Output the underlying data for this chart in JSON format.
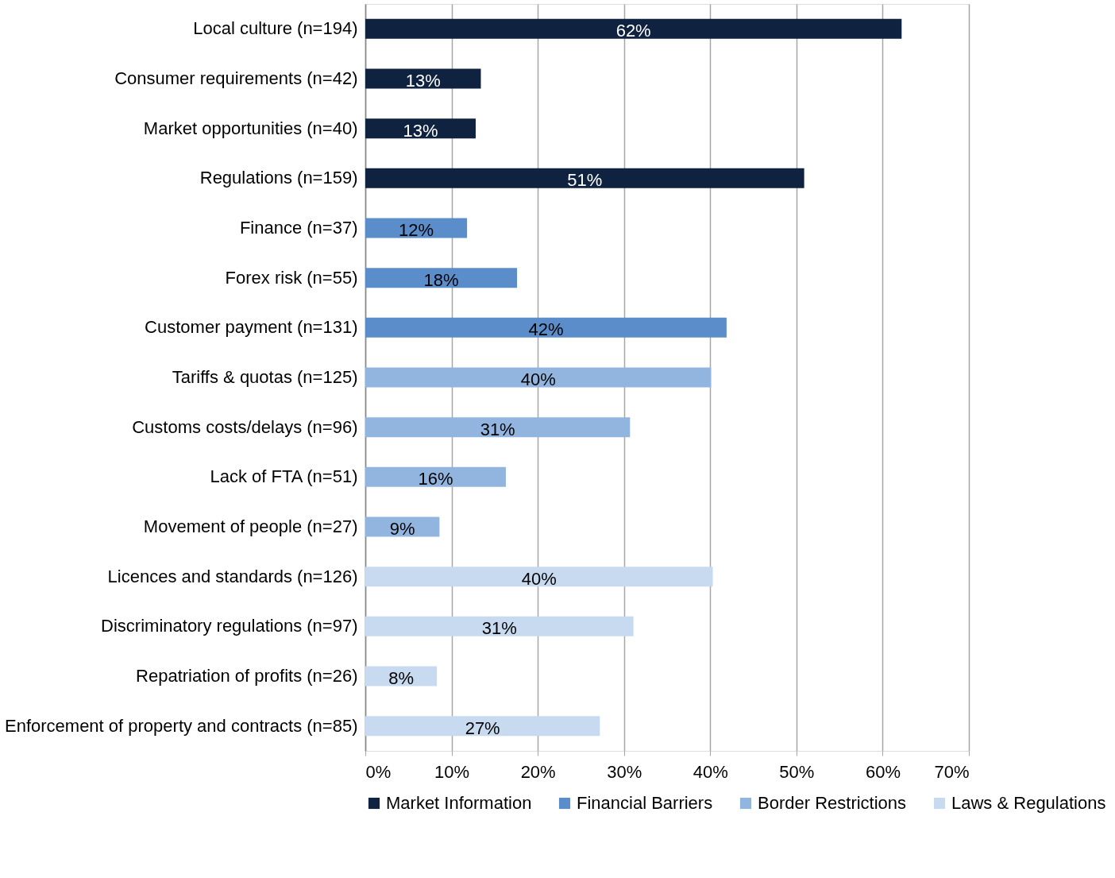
{
  "chart_data": {
    "type": "bar",
    "orientation": "horizontal",
    "categories": [
      "Local culture (n=194)",
      "Consumer requirements (n=42)",
      "Market opportunities (n=40)",
      "Regulations (n=159)",
      "Finance (n=37)",
      "Forex risk (n=55)",
      "Customer payment (n=131)",
      "Tariffs & quotas (n=125)",
      "Customs costs/delays (n=96)",
      "Lack of FTA (n=51)",
      "Movement of people (n=27)",
      "Licences and standards (n=126)",
      "Discriminatory regulations (n=97)",
      "Repatriation of profits (n=26)",
      "Enforcement of property and contracts (n=85)"
    ],
    "series": [
      {
        "name": "Market Information",
        "color": "#0f2240",
        "values": [
          62.2,
          13.4,
          12.8,
          50.9,
          null,
          null,
          null,
          null,
          null,
          null,
          null,
          null,
          null,
          null,
          null
        ],
        "value_labels": [
          "62%",
          "13%",
          "13%",
          "51%",
          null,
          null,
          null,
          null,
          null,
          null,
          null,
          null,
          null,
          null,
          null
        ]
      },
      {
        "name": "Financial Barriers",
        "color": "#5a8dca",
        "values": [
          null,
          null,
          null,
          null,
          11.8,
          17.6,
          41.9,
          null,
          null,
          null,
          null,
          null,
          null,
          null,
          null
        ],
        "value_labels": [
          null,
          null,
          null,
          null,
          "12%",
          "18%",
          "42%",
          null,
          null,
          null,
          null,
          null,
          null,
          null,
          null
        ]
      },
      {
        "name": "Border Restrictions",
        "color": "#92b5df",
        "values": [
          null,
          null,
          null,
          null,
          null,
          null,
          null,
          40.1,
          30.7,
          16.3,
          8.6,
          null,
          null,
          null,
          null
        ],
        "value_labels": [
          null,
          null,
          null,
          null,
          null,
          null,
          null,
          "40%",
          "31%",
          "16%",
          "9%",
          null,
          null,
          null,
          null
        ]
      },
      {
        "name": "Laws & Regulations",
        "color": "#c7daf0",
        "values": [
          null,
          null,
          null,
          null,
          null,
          null,
          null,
          null,
          null,
          null,
          null,
          40.3,
          31.1,
          8.3,
          27.2
        ],
        "value_labels": [
          null,
          null,
          null,
          null,
          null,
          null,
          null,
          null,
          null,
          null,
          null,
          "40%",
          "31%",
          "8%",
          "27%"
        ]
      }
    ],
    "xlim": [
      0,
      70
    ],
    "xticks": [
      {
        "value": 0,
        "label": "0%"
      },
      {
        "value": 10,
        "label": "10%"
      },
      {
        "value": 20,
        "label": "20%"
      },
      {
        "value": 30,
        "label": "30%"
      },
      {
        "value": 40,
        "label": "40%"
      },
      {
        "value": 50,
        "label": "50%"
      },
      {
        "value": 60,
        "label": "60%"
      },
      {
        "value": 70,
        "label": "70%"
      }
    ],
    "grid": "x",
    "legend": "bottom"
  }
}
